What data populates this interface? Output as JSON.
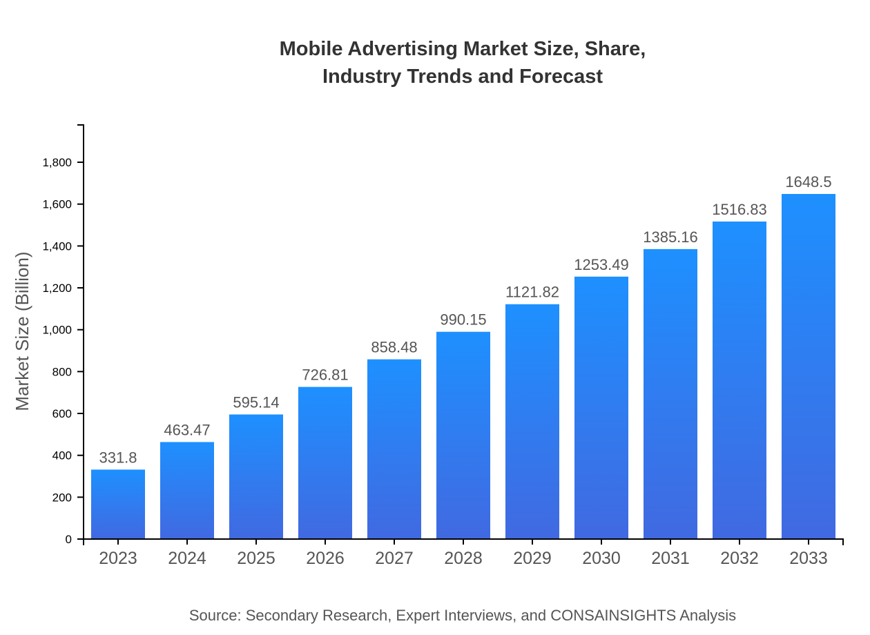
{
  "chart_data": {
    "type": "bar",
    "title_lines": [
      "Mobile Advertising Market Size, Share,",
      "Industry Trends and Forecast"
    ],
    "xlabel": "",
    "ylabel": "Market Size (Billion)",
    "categories": [
      "2023",
      "2024",
      "2025",
      "2026",
      "2027",
      "2028",
      "2029",
      "2030",
      "2031",
      "2032",
      "2033"
    ],
    "values": [
      331.8,
      463.47,
      595.14,
      726.81,
      858.48,
      990.15,
      1121.82,
      1253.49,
      1385.16,
      1516.83,
      1648.5
    ],
    "data_labels": [
      "331.8",
      "463.47",
      "595.14",
      "726.81",
      "858.48",
      "990.15",
      "1121.82",
      "1253.49",
      "1385.16",
      "1516.83",
      "1648.5"
    ],
    "ylim": [
      0,
      1978.2
    ],
    "yticks": [
      0,
      200,
      400,
      600,
      800,
      1000,
      1200,
      1400,
      1600,
      1800
    ],
    "ytick_labels": [
      "0",
      "200",
      "400",
      "600",
      "800",
      "1,000",
      "1,200",
      "1,400",
      "1,600",
      "1,800"
    ],
    "grid": false,
    "colors": {
      "bar_top": "#1e90ff",
      "bar_bottom": "#4169e1"
    },
    "source": "Source: Secondary Research, Expert Interviews, and CONSAINSIGHTS Analysis"
  }
}
